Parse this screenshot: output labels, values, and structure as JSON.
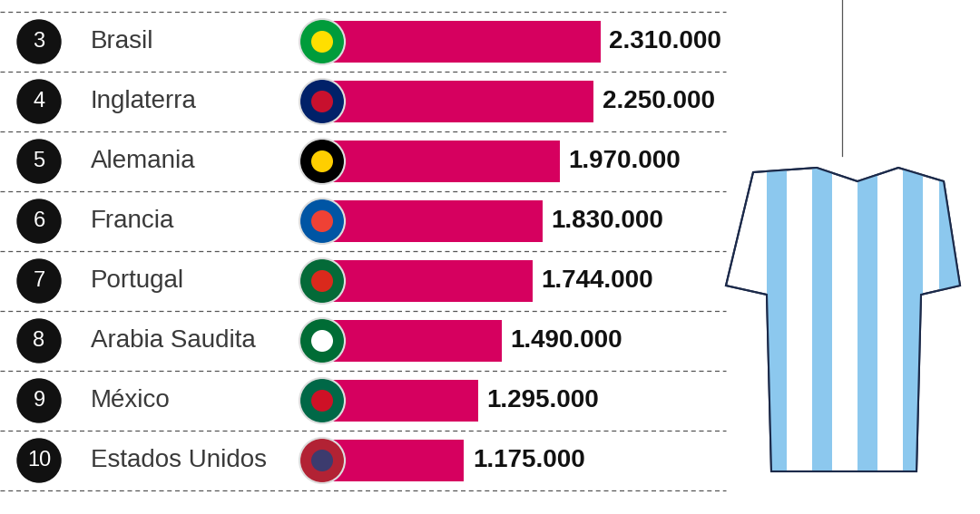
{
  "chart_data": {
    "type": "bar",
    "orientation": "horizontal",
    "ranks": [
      3,
      4,
      5,
      6,
      7,
      8,
      9,
      10
    ],
    "categories": [
      "Brasil",
      "Inglaterra",
      "Alemania",
      "Francia",
      "Portugal",
      "Arabia Saudita",
      "México",
      "Estados Unidos"
    ],
    "values": [
      2310000,
      2250000,
      1970000,
      1830000,
      1744000,
      1490000,
      1295000,
      1175000
    ],
    "value_labels": [
      "2.310.000",
      "2.250.000",
      "1.970.000",
      "1.830.000",
      "1.744.000",
      "1.490.000",
      "1.295.000",
      "1.175.000"
    ],
    "color": "#d6005f",
    "xlim": [
      0,
      4330000
    ],
    "data_labels": true,
    "tick_labels": false,
    "grid": false
  }
}
